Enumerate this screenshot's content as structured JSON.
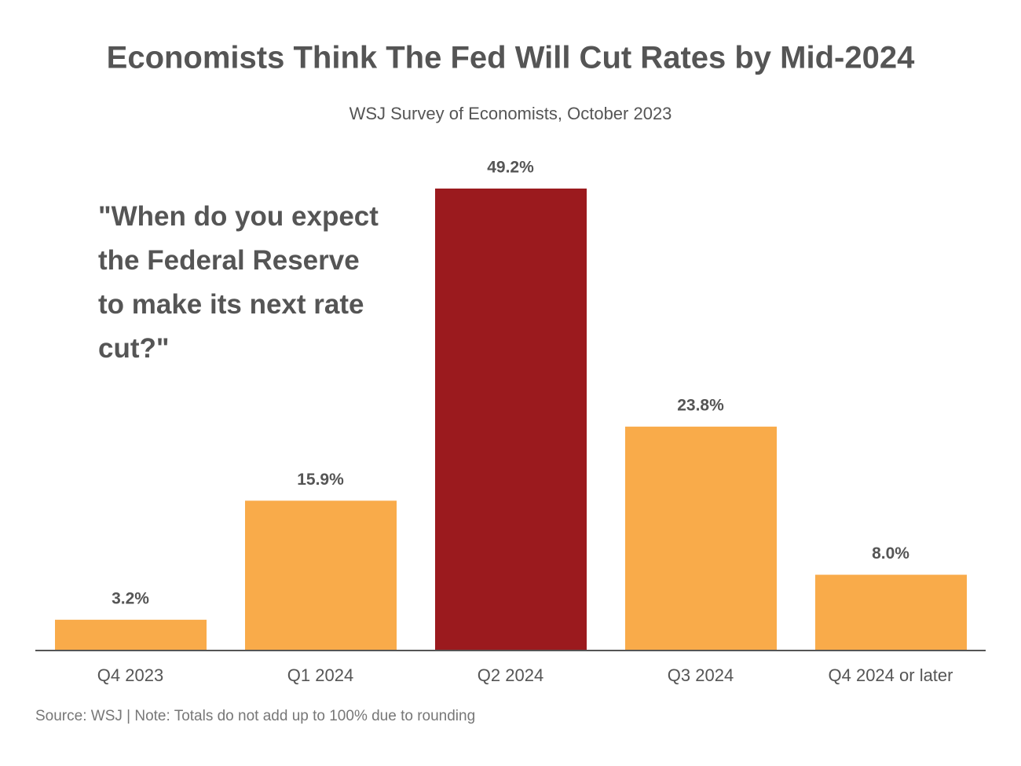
{
  "chart_data": {
    "type": "bar",
    "title": "Economists Think The Fed Will Cut Rates by Mid-2024",
    "subtitle": "WSJ Survey of Economists, October 2023",
    "annotation": "\"When do you expect the Federal Reserve to make its next rate cut?\"",
    "source": "Source: WSJ | Note: Totals do not add up to 100% due to rounding",
    "categories": [
      "Q4 2023",
      "Q1 2024",
      "Q2 2024",
      "Q3 2024",
      "Q4 2024 or later"
    ],
    "values": [
      3.2,
      15.9,
      49.2,
      23.8,
      8.0
    ],
    "value_labels": [
      "3.2%",
      "15.9%",
      "49.2%",
      "23.8%",
      "8.0%"
    ],
    "colors": [
      "#f9ab4a",
      "#f9ab4a",
      "#9b1a1e",
      "#f9ab4a",
      "#f9ab4a"
    ]
  }
}
